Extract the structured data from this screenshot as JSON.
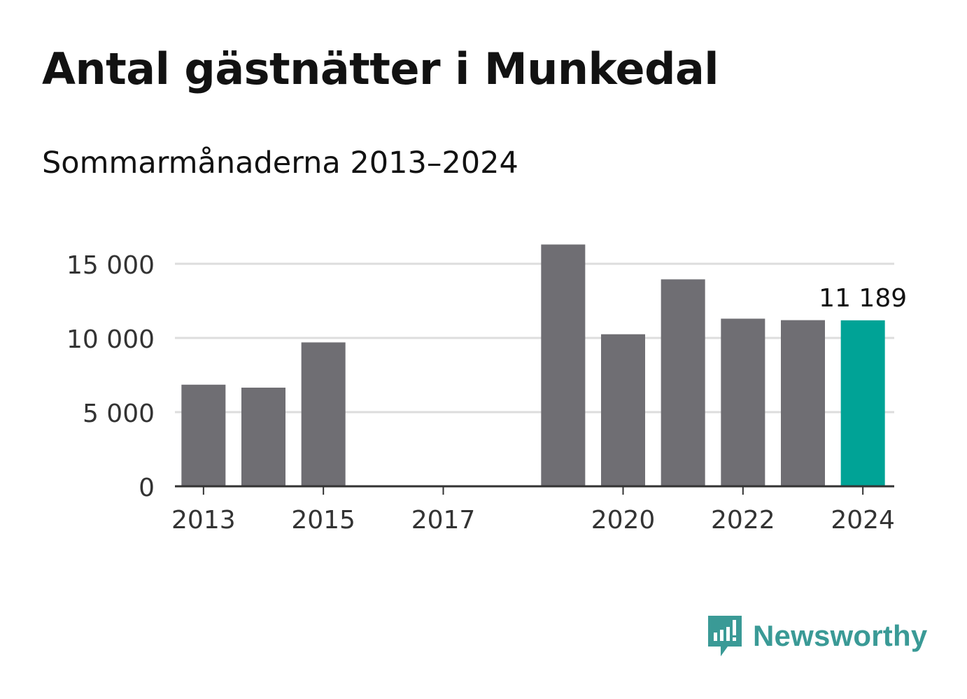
{
  "header": {
    "title": "Antal gästnätter i Munkedal",
    "subtitle": "Sommarmånaderna 2013–2024"
  },
  "brand": {
    "name": "Newsworthy",
    "icon": "newsworthy-logo-icon",
    "color": "#3a9a96"
  },
  "chart_data": {
    "type": "bar",
    "categories": [
      "2013",
      "2014",
      "2015",
      "2016",
      "2017",
      "2018",
      "2019",
      "2020",
      "2021",
      "2022",
      "2023",
      "2024"
    ],
    "values": [
      6850,
      6650,
      9700,
      null,
      null,
      null,
      16300,
      10250,
      13950,
      11300,
      11200,
      11189
    ],
    "x_tick_labels": [
      "2013",
      "2015",
      "2017",
      "2020",
      "2022",
      "2024"
    ],
    "y_ticks": [
      0,
      5000,
      10000,
      15000
    ],
    "y_tick_labels": [
      "0",
      "5 000",
      "10 000",
      "15 000"
    ],
    "ylim": [
      0,
      16500
    ],
    "highlight_index": 11,
    "highlight_label": "11 189",
    "colors": {
      "bar": "#6f6e73",
      "highlight": "#00a396",
      "grid": "#dddddd",
      "axis": "#333333"
    },
    "grid": true,
    "legend": false
  }
}
